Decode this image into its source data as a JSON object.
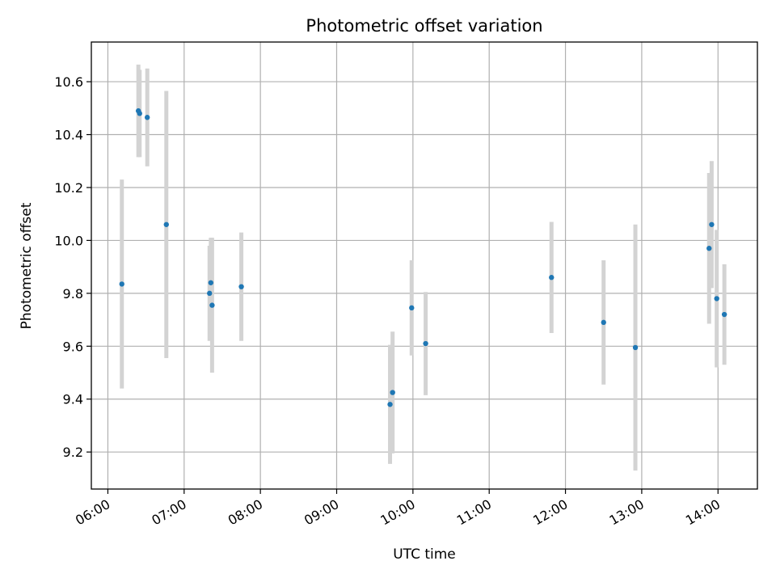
{
  "chart_data": {
    "type": "scatter",
    "title": "Photometric offset variation",
    "xlabel": "UTC time",
    "ylabel": "Photometric offset",
    "x_ticks": [
      "06:00",
      "07:00",
      "08:00",
      "09:00",
      "10:00",
      "11:00",
      "12:00",
      "13:00",
      "14:00"
    ],
    "x_range": [
      "05:47",
      "14:31"
    ],
    "y_ticks": [
      "9.2",
      "9.4",
      "9.6",
      "9.8",
      "10.0",
      "10.2",
      "10.4",
      "10.6"
    ],
    "ylim": [
      9.06,
      10.75
    ],
    "grid": true,
    "legend": "none",
    "point_color": "#1f77b4",
    "errorbar_color": "#d3d3d3",
    "points": [
      {
        "x": "06:11",
        "y": 9.835,
        "err": 0.395
      },
      {
        "x": "06:24",
        "y": 10.49,
        "err": 0.175
      },
      {
        "x": "06:25",
        "y": 10.48,
        "err": 0.165
      },
      {
        "x": "06:31",
        "y": 10.465,
        "err": 0.185
      },
      {
        "x": "06:46",
        "y": 10.06,
        "err": 0.505
      },
      {
        "x": "07:20",
        "y": 9.8,
        "err": 0.18
      },
      {
        "x": "07:21",
        "y": 9.84,
        "err": 0.17
      },
      {
        "x": "07:22",
        "y": 9.755,
        "err": 0.255
      },
      {
        "x": "07:45",
        "y": 9.825,
        "err": 0.205
      },
      {
        "x": "09:42",
        "y": 9.38,
        "err": 0.225
      },
      {
        "x": "09:44",
        "y": 9.425,
        "err": 0.23
      },
      {
        "x": "09:59",
        "y": 9.745,
        "err": 0.18
      },
      {
        "x": "10:10",
        "y": 9.61,
        "err": 0.195
      },
      {
        "x": "11:49",
        "y": 9.86,
        "err": 0.21
      },
      {
        "x": "12:30",
        "y": 9.69,
        "err": 0.235
      },
      {
        "x": "12:55",
        "y": 9.595,
        "err": 0.465
      },
      {
        "x": "13:53",
        "y": 9.97,
        "err": 0.285
      },
      {
        "x": "13:55",
        "y": 10.06,
        "err": 0.24
      },
      {
        "x": "13:59",
        "y": 9.78,
        "err": 0.26
      },
      {
        "x": "14:05",
        "y": 9.72,
        "err": 0.19
      }
    ]
  }
}
